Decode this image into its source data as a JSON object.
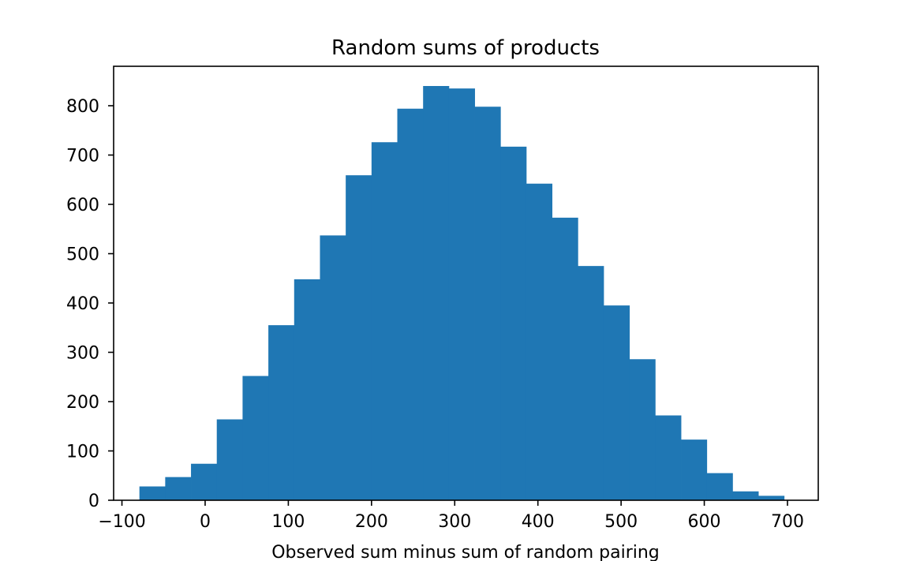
{
  "chart_data": {
    "type": "bar",
    "subtype": "histogram",
    "title": "Random sums of products",
    "xlabel": "Observed sum minus sum of random pairing",
    "ylabel": "",
    "color": "#1f77b4",
    "xlim": [
      -110,
      737
    ],
    "ylim": [
      0,
      880
    ],
    "grid": false,
    "legend": false,
    "xticks": [
      -100,
      0,
      100,
      200,
      300,
      400,
      500,
      600,
      700
    ],
    "xtick_labels": [
      "−100",
      "0",
      "100",
      "200",
      "300",
      "400",
      "500",
      "600",
      "700"
    ],
    "yticks": [
      0,
      100,
      200,
      300,
      400,
      500,
      600,
      700,
      800
    ],
    "ytick_labels": [
      "0",
      "100",
      "200",
      "300",
      "400",
      "500",
      "600",
      "700",
      "800"
    ],
    "bin_edges": [
      -79,
      -48,
      -17,
      14,
      45,
      76,
      107,
      138,
      169,
      200,
      231,
      262,
      293,
      324,
      355,
      386,
      417,
      448,
      479,
      510,
      541,
      572,
      603,
      634,
      665,
      696
    ],
    "values": [
      28,
      47,
      74,
      164,
      252,
      355,
      448,
      537,
      659,
      726,
      794,
      840,
      835,
      798,
      717,
      642,
      573,
      475,
      395,
      286,
      172,
      123,
      55,
      18,
      9
    ]
  }
}
